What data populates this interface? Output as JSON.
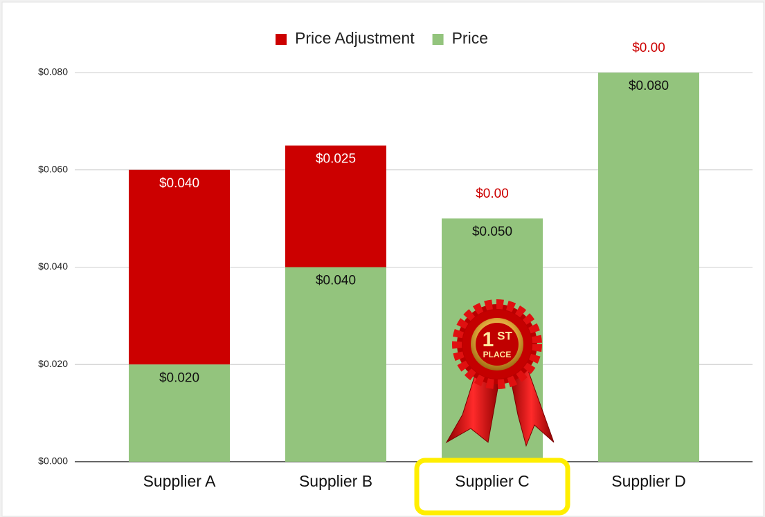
{
  "chart_data": {
    "type": "stacked-bar",
    "categories": [
      "Supplier A",
      "Supplier B",
      "Supplier C",
      "Supplier D"
    ],
    "series": [
      {
        "name": "Price",
        "color": "#93c47d",
        "values": [
          0.02,
          0.04,
          0.05,
          0.08
        ],
        "value_labels": [
          "$0.020",
          "$0.040",
          "$0.050",
          "$0.080"
        ]
      },
      {
        "name": "Price Adjustment",
        "color": "#cc0000",
        "values": [
          0.04,
          0.025,
          0,
          0
        ],
        "value_labels": [
          "$0.040",
          "$0.025",
          "$0.00",
          "$0.00"
        ]
      }
    ],
    "ylim": [
      0,
      0.08
    ],
    "yticks": [
      {
        "value": 0,
        "label": "$0.000"
      },
      {
        "value": 0.02,
        "label": "$0.020"
      },
      {
        "value": 0.04,
        "label": "$0.040"
      },
      {
        "value": 0.06,
        "label": "$0.060"
      },
      {
        "value": 0.08,
        "label": "$0.080"
      }
    ],
    "grid": true,
    "legend": "top",
    "annotations": [
      "1",
      "ST",
      "PLACE"
    ]
  }
}
